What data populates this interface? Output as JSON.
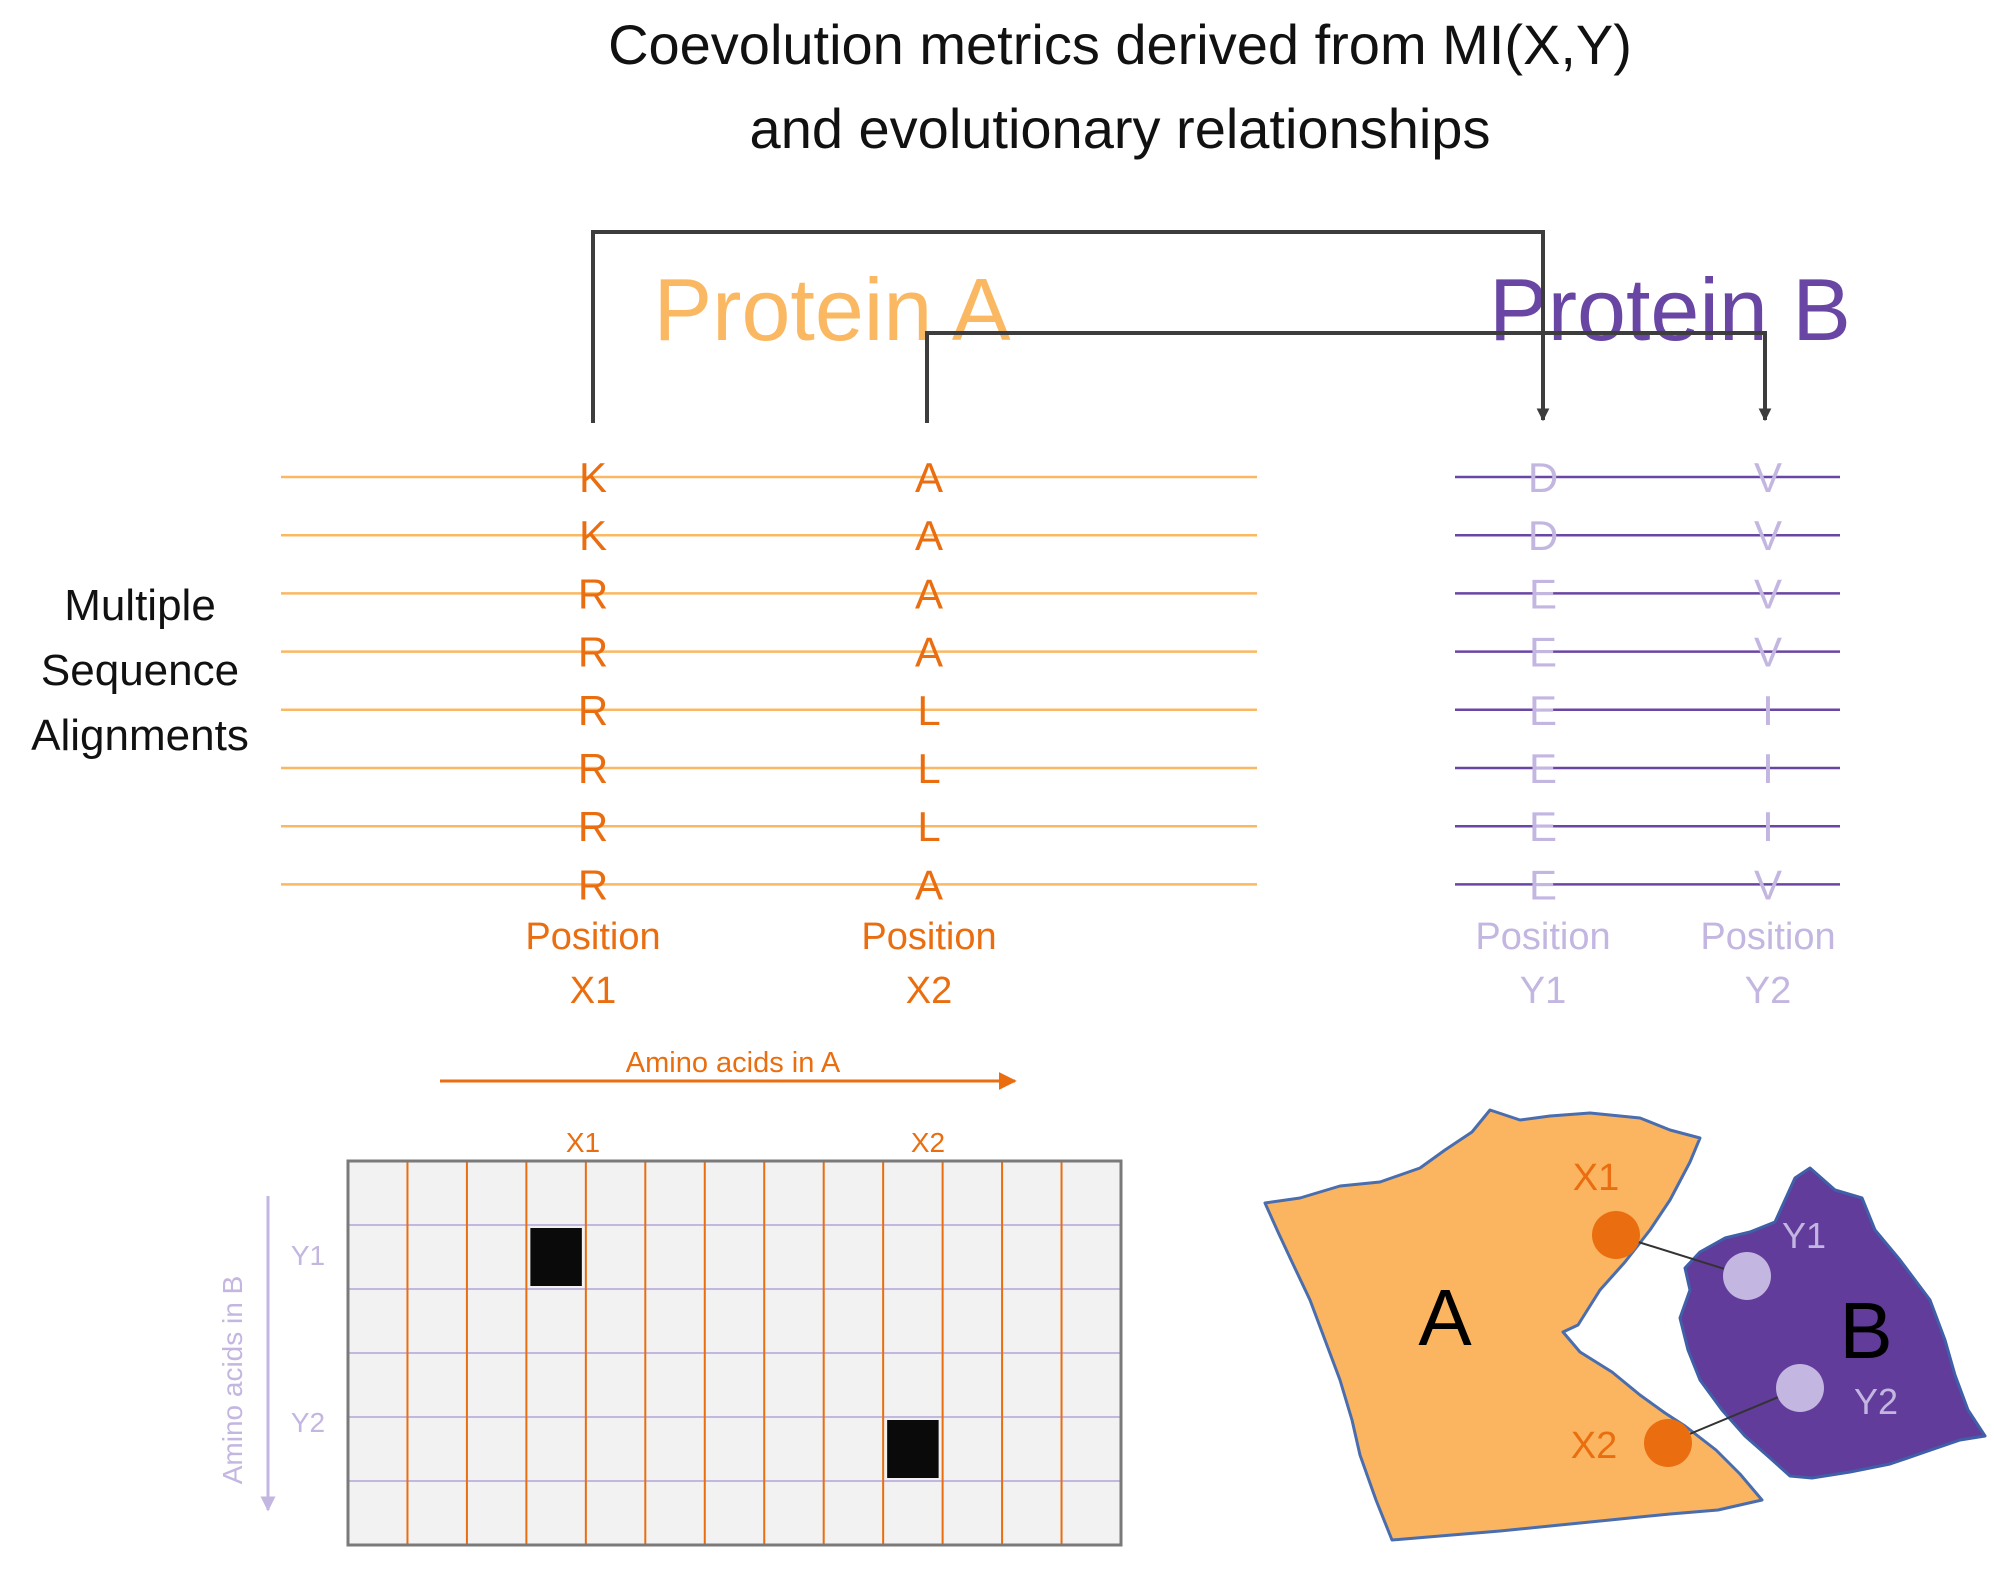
{
  "title": {
    "line1": "Coevolution metrics derived from MI(X,Y)",
    "line2": "and evolutionary relationships"
  },
  "proteins": {
    "a_label": "Protein A",
    "b_label": "Protein B"
  },
  "msa": {
    "label_lines": [
      "Multiple",
      "Sequence",
      "Alignments"
    ],
    "columns": [
      {
        "protein": "A",
        "residues": [
          "K",
          "K",
          "R",
          "R",
          "R",
          "R",
          "R",
          "R"
        ],
        "position_line1": "Position",
        "position_line2": "X1"
      },
      {
        "protein": "A",
        "residues": [
          "A",
          "A",
          "A",
          "A",
          "L",
          "L",
          "L",
          "A"
        ],
        "position_line1": "Position",
        "position_line2": "X2"
      },
      {
        "protein": "B",
        "residues": [
          "D",
          "D",
          "E",
          "E",
          "E",
          "E",
          "E",
          "E"
        ],
        "position_line1": "Position",
        "position_line2": "Y1"
      },
      {
        "protein": "B",
        "residues": [
          "V",
          "V",
          "V",
          "V",
          "I",
          "I",
          "I",
          "V"
        ],
        "position_line1": "Position",
        "position_line2": "Y2"
      }
    ]
  },
  "matrix": {
    "x_axis_label": "Amino acids in A",
    "y_axis_label": "Amino acids in B",
    "col_labels": [
      "X1",
      "X2"
    ],
    "row_labels": [
      "Y1",
      "Y2"
    ],
    "cols": 13,
    "rows": 6,
    "filled_cells": [
      {
        "col": 3,
        "row": 1
      },
      {
        "col": 9,
        "row": 4
      }
    ]
  },
  "structure": {
    "a_label": "A",
    "b_label": "B",
    "sites": [
      "X1",
      "Y1",
      "X2",
      "Y2"
    ]
  },
  "colors": {
    "protein_a_light": "#fbb862",
    "protein_a_fill": "#fbb560",
    "protein_a_dark": "#ea6e10",
    "protein_b": "#6a46a4",
    "protein_b_light": "#c3b6e1",
    "protein_b_fill": "#613c9a",
    "arrow": "#3d3d3d",
    "matrix_bg": "#f2f2f2",
    "filled_cell": "#0a0a0a"
  }
}
